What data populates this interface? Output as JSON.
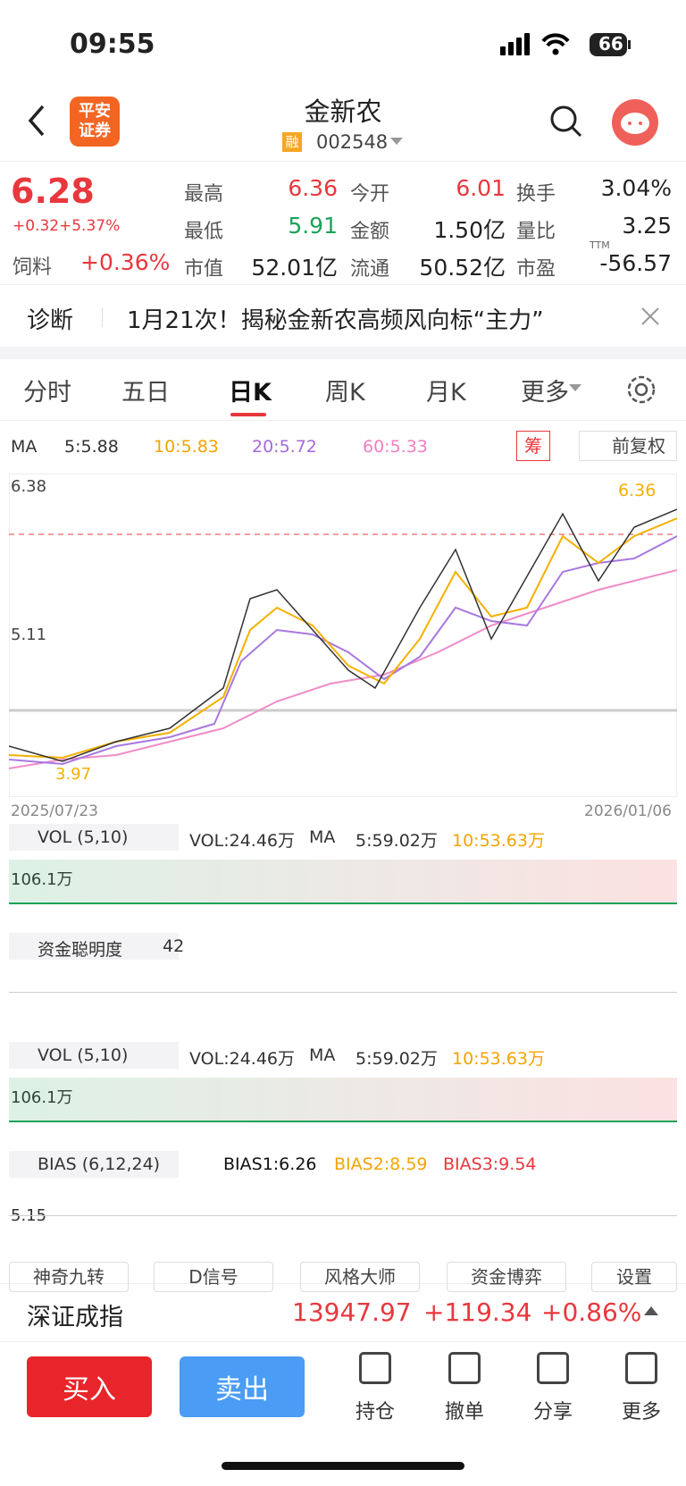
{
  "status": {
    "time": "09:55",
    "battery": "66"
  },
  "header": {
    "logo": [
      "平安",
      "证券"
    ],
    "title": "金新农",
    "tag": "融",
    "code": "002548"
  },
  "quote": {
    "price": "6.28",
    "change": "+0.32",
    "change_pct": "+5.37%",
    "sector": "饲料",
    "sector_pct": "+0.36%",
    "stats": [
      {
        "label": "最高",
        "value": "6.36"
      },
      {
        "label": "今开",
        "value": "6.01"
      },
      {
        "label": "换手",
        "value": "3.04%"
      },
      {
        "label": "最低",
        "value": "5.91"
      },
      {
        "label": "金额",
        "value": "1.50亿"
      },
      {
        "label": "量比",
        "value": "3.25"
      },
      {
        "label": "市值",
        "value": "52.01亿"
      },
      {
        "label": "流通",
        "value": "50.52亿"
      },
      {
        "label": "市盈",
        "value": "-56.57"
      }
    ],
    "pe_tag": "TTM"
  },
  "diagnosis": {
    "label": "诊断",
    "text": "1月21次！揭秘金新农高频风向标“主力”"
  },
  "tabs": [
    "分时",
    "五日",
    "日K",
    "周K",
    "月K",
    "更多"
  ],
  "ma_legend": {
    "name": "MA",
    "items": [
      "5:5.88",
      "10:5.83",
      "20:5.72",
      "60:5.33"
    ],
    "chip": "筹",
    "adjust": "前复权"
  },
  "price_chart": {
    "labels": [
      "6.38",
      "5.11",
      "3.97"
    ],
    "high": "6.36",
    "start_date": "2025/07/23",
    "end_date": "2026/01/06"
  },
  "vol_panel": {
    "name": "VOL (5,10)",
    "vol": "VOL:24.46万",
    "ma": "MA",
    "ma5": "5:59.02万",
    "ma10": "10:53.63万",
    "axis": "106.1万"
  },
  "fund_panel": {
    "name": "资金聪明度",
    "value": "42"
  },
  "vol_panel2": {
    "name": "VOL (5,10)",
    "vol": "VOL:24.46万",
    "ma": "MA",
    "ma5": "5:59.02万",
    "ma10": "10:53.63万",
    "axis": "106.1万"
  },
  "bias_panel": {
    "name": "BIAS (6,12,24)",
    "b1": "BIAS1:6.26",
    "b2": "BIAS2:8.59",
    "b3": "BIAS3:9.54",
    "axis": "5.15"
  },
  "indicator_buttons": [
    "神奇九转",
    "D信号",
    "风格大师",
    "资金博弈",
    "设置"
  ],
  "index_bar": {
    "name": "深证成指",
    "value": "13947.97",
    "change": "+119.34",
    "change_pct": "+0.86%"
  },
  "actions": {
    "buy": "买入",
    "sell": "卖出",
    "tools": [
      "持仓",
      "撤单",
      "分享",
      "更多"
    ]
  }
}
